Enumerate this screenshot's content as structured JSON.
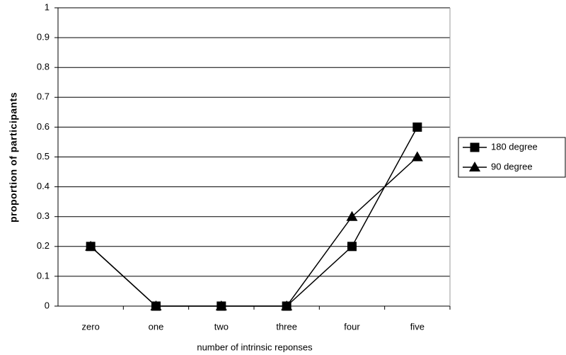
{
  "chart_data": {
    "type": "line",
    "x_label": "number of intrinsic reponses",
    "y_label": "proportion of participants",
    "categories": [
      "zero",
      "one",
      "two",
      "three",
      "four",
      "five"
    ],
    "series": [
      {
        "name": "180 degree",
        "color": "#000000",
        "marker": "square",
        "values": [
          0.2,
          0,
          0,
          0,
          0.2,
          0.6
        ]
      },
      {
        "name": "90 degree",
        "color": "#000000",
        "marker": "triangle",
        "values": [
          0.2,
          0,
          0,
          0,
          0.3,
          0.5
        ]
      }
    ],
    "ylim": [
      0,
      1
    ],
    "yticks": [
      0,
      0.1,
      0.2,
      0.3,
      0.4,
      0.5,
      0.6,
      0.7,
      0.8,
      0.9,
      1
    ],
    "grid": true,
    "legend": "right"
  }
}
